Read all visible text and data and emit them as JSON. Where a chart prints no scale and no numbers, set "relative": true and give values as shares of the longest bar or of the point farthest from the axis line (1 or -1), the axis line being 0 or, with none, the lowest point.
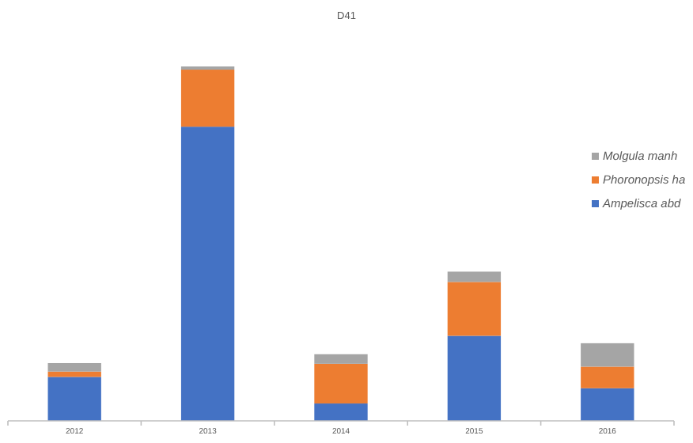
{
  "chart_data": {
    "type": "bar",
    "title": "D41",
    "categories": [
      "2012",
      "2013",
      "2014",
      "2015",
      "2016"
    ],
    "stacked": true,
    "relative": true,
    "legend": "right",
    "series": [
      {
        "name": "Ampelisca abd",
        "color": "#4472c4",
        "values": [
          0.124,
          0.83,
          0.049,
          0.24,
          0.092
        ]
      },
      {
        "name": "Phoronopsis ha",
        "color": "#ed7d31",
        "values": [
          0.015,
          0.161,
          0.112,
          0.152,
          0.061
        ]
      },
      {
        "name": "Molgula manh",
        "color": "#a5a5a5",
        "values": [
          0.024,
          0.009,
          0.027,
          0.029,
          0.066
        ]
      }
    ]
  }
}
